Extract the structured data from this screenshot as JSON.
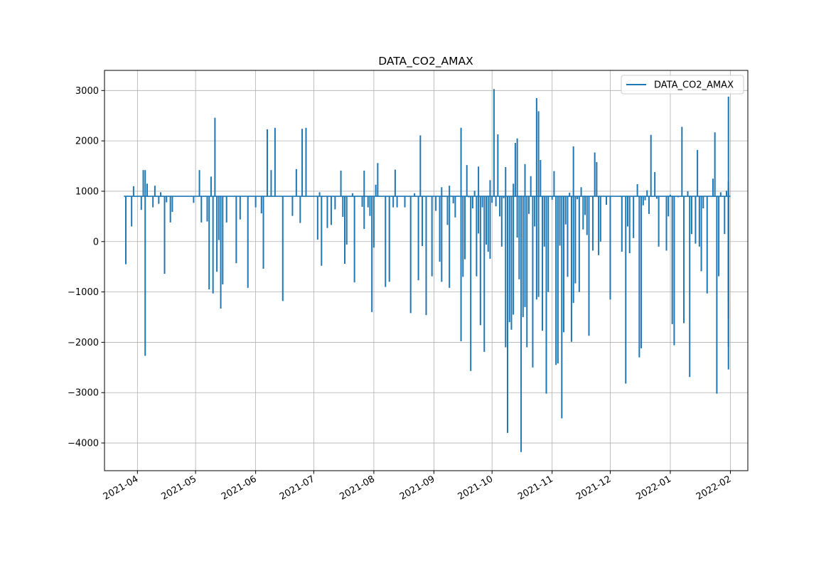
{
  "chart_data": {
    "type": "line",
    "title": "DATA_CO2_AMAX",
    "xlabel": "",
    "ylabel": "",
    "xlim": [
      "2021-03-15",
      "2022-02-10"
    ],
    "ylim": [
      -4550,
      3400
    ],
    "x_ticks": [
      "2021-04-01",
      "2021-05-01",
      "2021-06-01",
      "2021-07-01",
      "2021-08-01",
      "2021-09-01",
      "2021-10-01",
      "2021-11-01",
      "2021-12-01",
      "2022-01-01",
      "2022-02-01"
    ],
    "x_tick_labels": [
      "2021-04",
      "2021-05",
      "2021-06",
      "2021-07",
      "2021-08",
      "2021-09",
      "2021-10",
      "2021-11",
      "2021-12",
      "2022-01",
      "2022-02"
    ],
    "y_ticks": [
      3000,
      2000,
      1000,
      0,
      -1000,
      -2000,
      -3000,
      -4000
    ],
    "y_tick_labels": [
      "3000",
      "2000",
      "1000",
      "0",
      "−1000",
      "−2000",
      "−3000",
      "−4000"
    ],
    "grid": true,
    "legend": "upper-right",
    "baseline": 900,
    "start": "2021-03-25",
    "end": "2022-02-01",
    "series": [
      {
        "name": "DATA_CO2_AMAX",
        "color": "#1f77b4",
        "spikes": [
          [
            "2021-03-26",
            -450
          ],
          [
            "2021-03-29",
            300
          ],
          [
            "2021-03-30",
            1100
          ],
          [
            "2021-04-03",
            630
          ],
          [
            "2021-04-04",
            1420
          ],
          [
            "2021-04-05",
            1420
          ],
          [
            "2021-04-05",
            -2270
          ],
          [
            "2021-04-06",
            1150
          ],
          [
            "2021-04-09",
            680
          ],
          [
            "2021-04-10",
            1110
          ],
          [
            "2021-04-12",
            750
          ],
          [
            "2021-04-13",
            980
          ],
          [
            "2021-04-15",
            -640
          ],
          [
            "2021-04-16",
            780
          ],
          [
            "2021-04-18",
            380
          ],
          [
            "2021-04-19",
            590
          ],
          [
            "2021-04-30",
            770
          ],
          [
            "2021-05-03",
            1420
          ],
          [
            "2021-05-04",
            380
          ],
          [
            "2021-05-07",
            400
          ],
          [
            "2021-05-08",
            -950
          ],
          [
            "2021-05-09",
            1290
          ],
          [
            "2021-05-10",
            -1030
          ],
          [
            "2021-05-11",
            2460
          ],
          [
            "2021-05-12",
            -600
          ],
          [
            "2021-05-13",
            30
          ],
          [
            "2021-05-14",
            -1330
          ],
          [
            "2021-05-15",
            -850
          ],
          [
            "2021-05-17",
            380
          ],
          [
            "2021-05-22",
            -430
          ],
          [
            "2021-05-24",
            440
          ],
          [
            "2021-05-28",
            -920
          ],
          [
            "2021-06-01",
            680
          ],
          [
            "2021-06-04",
            560
          ],
          [
            "2021-06-05",
            -540
          ],
          [
            "2021-06-07",
            2230
          ],
          [
            "2021-06-09",
            1420
          ],
          [
            "2021-06-11",
            2260
          ],
          [
            "2021-06-15",
            -1180
          ],
          [
            "2021-06-20",
            510
          ],
          [
            "2021-06-22",
            1440
          ],
          [
            "2021-06-24",
            370
          ],
          [
            "2021-06-25",
            2240
          ],
          [
            "2021-06-27",
            2260
          ],
          [
            "2021-07-03",
            40
          ],
          [
            "2021-07-04",
            980
          ],
          [
            "2021-07-05",
            -480
          ],
          [
            "2021-07-08",
            270
          ],
          [
            "2021-07-10",
            330
          ],
          [
            "2021-07-12",
            640
          ],
          [
            "2021-07-15",
            1410
          ],
          [
            "2021-07-16",
            490
          ],
          [
            "2021-07-17",
            -440
          ],
          [
            "2021-07-18",
            -60
          ],
          [
            "2021-07-21",
            960
          ],
          [
            "2021-07-22",
            -810
          ],
          [
            "2021-07-26",
            690
          ],
          [
            "2021-07-27",
            250
          ],
          [
            "2021-07-27",
            1410
          ],
          [
            "2021-07-29",
            680
          ],
          [
            "2021-07-30",
            510
          ],
          [
            "2021-07-31",
            -1400
          ],
          [
            "2021-08-01",
            -120
          ],
          [
            "2021-08-02",
            1130
          ],
          [
            "2021-08-03",
            1560
          ],
          [
            "2021-08-07",
            -900
          ],
          [
            "2021-08-09",
            -800
          ],
          [
            "2021-08-11",
            680
          ],
          [
            "2021-08-12",
            1430
          ],
          [
            "2021-08-13",
            680
          ],
          [
            "2021-08-17",
            680
          ],
          [
            "2021-08-20",
            -1420
          ],
          [
            "2021-08-22",
            960
          ],
          [
            "2021-08-24",
            -770
          ],
          [
            "2021-08-25",
            2110
          ],
          [
            "2021-08-26",
            -90
          ],
          [
            "2021-08-28",
            -1460
          ],
          [
            "2021-08-31",
            -690
          ],
          [
            "2021-09-02",
            610
          ],
          [
            "2021-09-04",
            -400
          ],
          [
            "2021-09-05",
            -800
          ],
          [
            "2021-09-05",
            1080
          ],
          [
            "2021-09-08",
            330
          ],
          [
            "2021-09-09",
            1110
          ],
          [
            "2021-09-09",
            -920
          ],
          [
            "2021-09-11",
            760
          ],
          [
            "2021-09-12",
            480
          ],
          [
            "2021-09-15",
            2260
          ],
          [
            "2021-09-15",
            -1980
          ],
          [
            "2021-09-16",
            -700
          ],
          [
            "2021-09-17",
            -350
          ],
          [
            "2021-09-18",
            1520
          ],
          [
            "2021-09-19",
            880
          ],
          [
            "2021-09-20",
            -2570
          ],
          [
            "2021-09-21",
            660
          ],
          [
            "2021-09-22",
            1010
          ],
          [
            "2021-09-23",
            -690
          ],
          [
            "2021-09-24",
            1490
          ],
          [
            "2021-09-24",
            160
          ],
          [
            "2021-09-25",
            -1660
          ],
          [
            "2021-09-26",
            680
          ],
          [
            "2021-09-27",
            -2190
          ],
          [
            "2021-09-28",
            -60
          ],
          [
            "2021-09-29",
            -200
          ],
          [
            "2021-09-30",
            -340
          ],
          [
            "2021-09-30",
            1220
          ],
          [
            "2021-10-01",
            770
          ],
          [
            "2021-10-02",
            3030
          ],
          [
            "2021-10-03",
            700
          ],
          [
            "2021-10-04",
            2130
          ],
          [
            "2021-10-05",
            500
          ],
          [
            "2021-10-06",
            -100
          ],
          [
            "2021-10-07",
            860
          ],
          [
            "2021-10-08",
            -2100
          ],
          [
            "2021-10-08",
            1480
          ],
          [
            "2021-10-09",
            -3800
          ],
          [
            "2021-10-10",
            -1600
          ],
          [
            "2021-10-11",
            -1750
          ],
          [
            "2021-10-12",
            1150
          ],
          [
            "2021-10-12",
            -1450
          ],
          [
            "2021-10-13",
            1960
          ],
          [
            "2021-10-14",
            80
          ],
          [
            "2021-10-14",
            2050
          ],
          [
            "2021-10-15",
            -750
          ],
          [
            "2021-10-16",
            -4180
          ],
          [
            "2021-10-17",
            -1500
          ],
          [
            "2021-10-18",
            1540
          ],
          [
            "2021-10-18",
            -1300
          ],
          [
            "2021-10-19",
            -2100
          ],
          [
            "2021-10-20",
            550
          ],
          [
            "2021-10-21",
            1300
          ],
          [
            "2021-10-22",
            -2500
          ],
          [
            "2021-10-23",
            300
          ],
          [
            "2021-10-24",
            -1150
          ],
          [
            "2021-10-24",
            2850
          ],
          [
            "2021-10-25",
            2590
          ],
          [
            "2021-10-25",
            -1100
          ],
          [
            "2021-10-26",
            1620
          ],
          [
            "2021-10-27",
            -1770
          ],
          [
            "2021-10-28",
            -100
          ],
          [
            "2021-10-29",
            -3020
          ],
          [
            "2021-10-30",
            -1000
          ],
          [
            "2021-11-01",
            830
          ],
          [
            "2021-11-02",
            1400
          ],
          [
            "2021-11-03",
            -2450
          ],
          [
            "2021-11-04",
            -2420
          ],
          [
            "2021-11-05",
            -80
          ],
          [
            "2021-11-06",
            -3510
          ],
          [
            "2021-11-07",
            -1800
          ],
          [
            "2021-11-08",
            340
          ],
          [
            "2021-11-09",
            -700
          ],
          [
            "2021-11-10",
            970
          ],
          [
            "2021-11-11",
            -1990
          ],
          [
            "2021-11-12",
            1890
          ],
          [
            "2021-11-12",
            -1220
          ],
          [
            "2021-11-13",
            -830
          ],
          [
            "2021-11-14",
            840
          ],
          [
            "2021-11-15",
            -1000
          ],
          [
            "2021-11-16",
            1080
          ],
          [
            "2021-11-17",
            240
          ],
          [
            "2021-11-18",
            530
          ],
          [
            "2021-11-19",
            130
          ],
          [
            "2021-11-20",
            -1870
          ],
          [
            "2021-11-22",
            -180
          ],
          [
            "2021-11-23",
            1770
          ],
          [
            "2021-11-24",
            1580
          ],
          [
            "2021-11-25",
            -270
          ],
          [
            "2021-11-26",
            0
          ],
          [
            "2021-11-29",
            730
          ],
          [
            "2021-12-01",
            -1150
          ],
          [
            "2021-12-07",
            -200
          ],
          [
            "2021-12-09",
            -2820
          ],
          [
            "2021-12-10",
            300
          ],
          [
            "2021-12-11",
            -230
          ],
          [
            "2021-12-13",
            70
          ],
          [
            "2021-12-15",
            1140
          ],
          [
            "2021-12-16",
            -2300
          ],
          [
            "2021-12-17",
            -2120
          ],
          [
            "2021-12-18",
            720
          ],
          [
            "2021-12-19",
            820
          ],
          [
            "2021-12-20",
            1020
          ],
          [
            "2021-12-21",
            550
          ],
          [
            "2021-12-22",
            2120
          ],
          [
            "2021-12-24",
            1380
          ],
          [
            "2021-12-25",
            850
          ],
          [
            "2021-12-26",
            -100
          ],
          [
            "2021-12-30",
            -180
          ],
          [
            "2021-12-31",
            500
          ],
          [
            "2022-01-01",
            930
          ],
          [
            "2022-01-02",
            -1640
          ],
          [
            "2022-01-03",
            -2060
          ],
          [
            "2022-01-05",
            880
          ],
          [
            "2022-01-07",
            2280
          ],
          [
            "2022-01-08",
            -1620
          ],
          [
            "2022-01-10",
            1000
          ],
          [
            "2022-01-11",
            -2690
          ],
          [
            "2022-01-12",
            150
          ],
          [
            "2022-01-14",
            -40
          ],
          [
            "2022-01-15",
            1820
          ],
          [
            "2022-01-16",
            -100
          ],
          [
            "2022-01-17",
            -590
          ],
          [
            "2022-01-18",
            660
          ],
          [
            "2022-01-20",
            -1030
          ],
          [
            "2022-01-23",
            1250
          ],
          [
            "2022-01-24",
            2170
          ],
          [
            "2022-01-25",
            -3020
          ],
          [
            "2022-01-26",
            -690
          ],
          [
            "2022-01-27",
            980
          ],
          [
            "2022-01-29",
            150
          ],
          [
            "2022-01-30",
            1010
          ],
          [
            "2022-01-31",
            -2090
          ],
          [
            "2022-01-31",
            260
          ],
          [
            "2022-01-31",
            220
          ],
          [
            "2022-01-31",
            -2540
          ],
          [
            "2022-01-31",
            -1530
          ],
          [
            "2022-01-31",
            1080
          ],
          [
            "2022-01-31",
            -1150
          ],
          [
            "2022-01-31",
            560
          ],
          [
            "2022-01-31",
            2880
          ],
          [
            "2022-01-31",
            1200
          ],
          [
            "2022-01-31",
            130
          ],
          [
            "2022-01-31",
            -1230
          ]
        ]
      }
    ]
  }
}
